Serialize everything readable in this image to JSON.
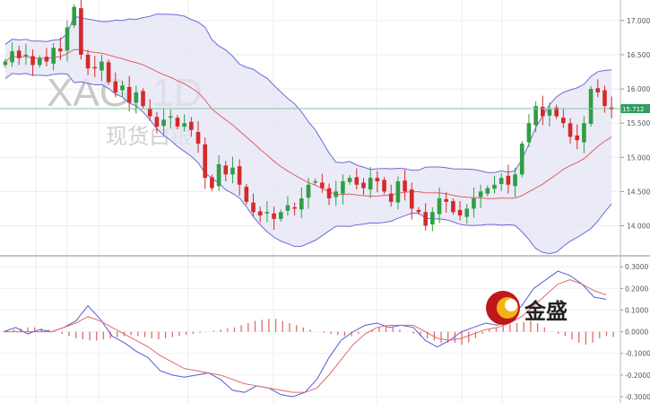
{
  "chart_data": [
    {
      "type": "candlestick",
      "watermark_symbol": "XAG, 1D",
      "watermark_name": "现货白银",
      "ylim": [
        13.6,
        17.3
      ],
      "y_ticks": [
        "14.000",
        "14.500",
        "15.000",
        "15.500",
        "16.000",
        "16.500",
        "17.000"
      ],
      "y_tick_values": [
        14.0,
        14.5,
        15.0,
        15.5,
        16.0,
        16.5,
        17.0
      ],
      "last_price": "15.712",
      "last_price_value": 15.712,
      "overlays": [
        "Bollinger Bands (upper, middle, lower)"
      ],
      "colors": {
        "up": "#2f9e44",
        "down": "#d42a2a",
        "band_line": "#6b6bd6",
        "band_fill": "#e4e4f5",
        "middle": "#e06060",
        "price_line": "#7cc9a0",
        "tag": "#2f9e5f"
      },
      "candles_note": "approximate daily OHLC, 89 sessions, read from chart",
      "closes": [
        16.4,
        16.55,
        16.45,
        16.5,
        16.35,
        16.45,
        16.4,
        16.6,
        16.55,
        16.9,
        17.2,
        16.5,
        16.3,
        16.3,
        16.4,
        16.1,
        15.95,
        16.05,
        15.8,
        15.95,
        15.75,
        15.6,
        15.45,
        15.55,
        15.6,
        15.45,
        15.5,
        15.4,
        15.2,
        14.7,
        14.55,
        14.9,
        14.75,
        14.85,
        14.6,
        14.35,
        14.2,
        14.15,
        14.2,
        14.1,
        14.2,
        14.3,
        14.25,
        14.4,
        14.6,
        14.65,
        14.55,
        14.4,
        14.5,
        14.65,
        14.7,
        14.6,
        14.55,
        14.7,
        14.65,
        14.5,
        14.35,
        14.65,
        14.5,
        14.25,
        14.2,
        14.0,
        14.2,
        14.4,
        14.35,
        14.2,
        14.15,
        14.25,
        14.4,
        14.5,
        14.55,
        14.6,
        14.7,
        14.6,
        14.75,
        15.2,
        15.5,
        15.75,
        15.6,
        15.7,
        15.6,
        15.5,
        15.3,
        15.25,
        15.5,
        16.0,
        15.95,
        15.75,
        15.7
      ]
    },
    {
      "type": "macd",
      "ylim": [
        -0.3,
        0.33
      ],
      "y_ticks": [
        "0.3000",
        "0.2000",
        "0.1000",
        "0.0000",
        "-0.1000",
        "-0.2000",
        "-0.3000"
      ],
      "y_tick_values": [
        0.3,
        0.2,
        0.1,
        0.0,
        -0.1,
        -0.2,
        -0.3
      ],
      "series": [
        {
          "role": "macd_line",
          "color": "#5b5bd8",
          "values": [
            0.0,
            0.02,
            -0.01,
            0.01,
            0.0,
            0.02,
            0.05,
            0.12,
            0.06,
            -0.02,
            -0.05,
            -0.09,
            -0.12,
            -0.18,
            -0.2,
            -0.21,
            -0.2,
            -0.19,
            -0.22,
            -0.27,
            -0.28,
            -0.25,
            -0.26,
            -0.29,
            -0.3,
            -0.28,
            -0.22,
            -0.12,
            -0.04,
            0.0,
            0.03,
            0.04,
            0.02,
            0.03,
            0.02,
            -0.04,
            -0.07,
            -0.04,
            0.0,
            0.02,
            0.04,
            0.03,
            0.06,
            0.12,
            0.2,
            0.24,
            0.28,
            0.26,
            0.22,
            0.16,
            0.15
          ]
        },
        {
          "role": "signal_line",
          "color": "#e06a6a",
          "values": [
            0.0,
            0.0,
            0.0,
            0.0,
            0.0,
            0.02,
            0.04,
            0.07,
            0.05,
            0.02,
            -0.01,
            -0.04,
            -0.07,
            -0.11,
            -0.14,
            -0.17,
            -0.18,
            -0.19,
            -0.2,
            -0.22,
            -0.24,
            -0.25,
            -0.26,
            -0.27,
            -0.28,
            -0.28,
            -0.26,
            -0.2,
            -0.13,
            -0.06,
            -0.01,
            0.02,
            0.03,
            0.03,
            0.03,
            0.0,
            -0.03,
            -0.04,
            -0.03,
            -0.01,
            0.01,
            0.02,
            0.04,
            0.07,
            0.12,
            0.17,
            0.22,
            0.24,
            0.22,
            0.19,
            0.17
          ]
        },
        {
          "role": "histogram",
          "color": "#e06a6a",
          "values": [
            0.005,
            0.01,
            0.015,
            0.02,
            0.02,
            0.015,
            0.01,
            0.0,
            -0.01,
            -0.02,
            -0.03,
            -0.035,
            -0.04,
            -0.04,
            -0.035,
            -0.03,
            -0.025,
            -0.02,
            -0.015,
            -0.02,
            -0.025,
            -0.03,
            -0.035,
            -0.03,
            -0.025,
            -0.02,
            -0.015,
            -0.01,
            -0.005,
            0.0,
            0.005,
            0.01,
            0.015,
            0.02,
            0.03,
            0.04,
            0.05,
            0.055,
            0.06,
            0.06,
            0.05,
            0.04,
            0.03,
            0.02,
            0.01,
            0.0,
            -0.005,
            -0.01,
            -0.015,
            -0.02,
            -0.02,
            -0.01,
            0.0,
            0.01,
            0.02,
            0.025,
            0.02,
            0.01,
            0.0,
            -0.01,
            -0.02,
            -0.03,
            -0.04,
            -0.05,
            -0.05,
            -0.05,
            -0.06,
            -0.05,
            -0.03,
            -0.01,
            0.01,
            0.02,
            0.03,
            0.035,
            0.04,
            0.045,
            0.05,
            0.04,
            0.02,
            0.0,
            -0.01,
            -0.02,
            -0.035,
            -0.05,
            -0.06,
            -0.05,
            -0.03,
            -0.02,
            -0.025
          ]
        }
      ]
    }
  ],
  "logo": {
    "text": "金盛",
    "icon": "jinsheng-swirl-logo"
  }
}
